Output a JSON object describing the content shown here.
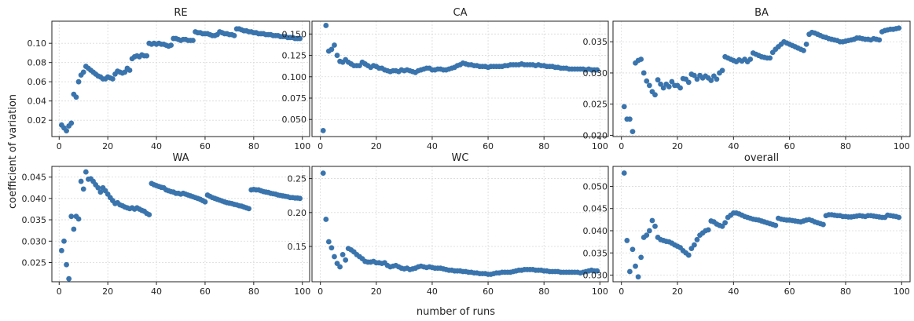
{
  "figure": {
    "ylabel": "coefficient of variation",
    "xlabel": "number of runs"
  },
  "colors": {
    "marker": "#3a74ad",
    "grid": "#d9d9d9",
    "axis": "#222222"
  },
  "chart_data": [
    {
      "type": "scatter",
      "title": "RE",
      "xlim": [
        -3,
        103
      ],
      "ylim": [
        0.003,
        0.123
      ],
      "xticks": [
        0,
        20,
        40,
        60,
        80,
        100
      ],
      "yticks": [
        0.02,
        0.04,
        0.06,
        0.08,
        0.1
      ],
      "ytick_labels": [
        "0.02",
        "0.04",
        "0.06",
        "0.08",
        "0.10"
      ],
      "grid": true,
      "x": [
        1,
        2,
        3,
        4,
        5,
        6,
        7,
        8,
        9,
        10,
        11,
        12,
        13,
        14,
        15,
        16,
        17,
        18,
        19,
        20,
        21,
        22,
        23,
        24,
        25,
        26,
        27,
        28,
        29,
        30,
        31,
        32,
        33,
        34,
        35,
        36,
        37,
        38,
        39,
        40,
        41,
        42,
        43,
        44,
        45,
        46,
        47,
        48,
        49,
        50,
        51,
        52,
        53,
        54,
        55,
        56,
        57,
        58,
        59,
        60,
        61,
        62,
        63,
        64,
        65,
        66,
        67,
        68,
        69,
        70,
        71,
        72,
        73,
        74,
        75,
        76,
        77,
        78,
        79,
        80,
        81,
        82,
        83,
        84,
        85,
        86,
        87,
        88,
        89,
        90,
        91,
        92,
        93,
        94,
        95,
        96,
        97,
        98,
        99
      ],
      "y": [
        0.015,
        0.012,
        0.009,
        0.014,
        0.017,
        0.047,
        0.044,
        0.06,
        0.067,
        0.07,
        0.076,
        0.074,
        0.072,
        0.07,
        0.068,
        0.066,
        0.065,
        0.063,
        0.063,
        0.065,
        0.064,
        0.063,
        0.068,
        0.071,
        0.07,
        0.069,
        0.07,
        0.074,
        0.072,
        0.084,
        0.086,
        0.087,
        0.086,
        0.088,
        0.087,
        0.087,
        0.1,
        0.099,
        0.1,
        0.099,
        0.1,
        0.099,
        0.099,
        0.098,
        0.097,
        0.098,
        0.105,
        0.105,
        0.104,
        0.103,
        0.104,
        0.104,
        0.103,
        0.103,
        0.103,
        0.112,
        0.111,
        0.111,
        0.11,
        0.11,
        0.11,
        0.109,
        0.108,
        0.108,
        0.109,
        0.112,
        0.111,
        0.11,
        0.11,
        0.109,
        0.109,
        0.108,
        0.115,
        0.115,
        0.114,
        0.113,
        0.113,
        0.112,
        0.112,
        0.111,
        0.111,
        0.11,
        0.11,
        0.11,
        0.109,
        0.109,
        0.109,
        0.108,
        0.108,
        0.108,
        0.107,
        0.107,
        0.107,
        0.106,
        0.106,
        0.106,
        0.105,
        0.105,
        0.105
      ]
    },
    {
      "type": "scatter",
      "title": "CA",
      "xlim": [
        -3,
        103
      ],
      "ylim": [
        0.03,
        0.165
      ],
      "xticks": [
        0,
        20,
        40,
        60,
        80,
        100
      ],
      "yticks": [
        0.05,
        0.075,
        0.1,
        0.125,
        0.15
      ],
      "ytick_labels": [
        "0.050",
        "0.075",
        "0.100",
        "0.125",
        "0.150"
      ],
      "grid": true,
      "x": [
        1,
        2,
        3,
        4,
        5,
        6,
        7,
        8,
        9,
        10,
        11,
        12,
        13,
        14,
        15,
        16,
        17,
        18,
        19,
        20,
        21,
        22,
        23,
        24,
        25,
        26,
        27,
        28,
        29,
        30,
        31,
        32,
        33,
        34,
        35,
        36,
        37,
        38,
        39,
        40,
        41,
        42,
        43,
        44,
        45,
        46,
        47,
        48,
        49,
        50,
        51,
        52,
        53,
        54,
        55,
        56,
        57,
        58,
        59,
        60,
        61,
        62,
        63,
        64,
        65,
        66,
        67,
        68,
        69,
        70,
        71,
        72,
        73,
        74,
        75,
        76,
        77,
        78,
        79,
        80,
        81,
        82,
        83,
        84,
        85,
        86,
        87,
        88,
        89,
        90,
        91,
        92,
        93,
        94,
        95,
        96,
        97,
        98,
        99
      ],
      "y": [
        0.037,
        0.16,
        0.13,
        0.132,
        0.137,
        0.125,
        0.118,
        0.117,
        0.12,
        0.117,
        0.115,
        0.113,
        0.113,
        0.113,
        0.117,
        0.115,
        0.113,
        0.111,
        0.113,
        0.112,
        0.11,
        0.11,
        0.108,
        0.107,
        0.106,
        0.107,
        0.107,
        0.106,
        0.108,
        0.107,
        0.108,
        0.107,
        0.106,
        0.105,
        0.107,
        0.108,
        0.109,
        0.11,
        0.11,
        0.108,
        0.108,
        0.109,
        0.109,
        0.108,
        0.108,
        0.109,
        0.11,
        0.111,
        0.113,
        0.114,
        0.116,
        0.115,
        0.114,
        0.114,
        0.113,
        0.113,
        0.112,
        0.112,
        0.112,
        0.111,
        0.112,
        0.112,
        0.112,
        0.112,
        0.112,
        0.113,
        0.113,
        0.114,
        0.114,
        0.114,
        0.114,
        0.115,
        0.114,
        0.114,
        0.114,
        0.114,
        0.113,
        0.114,
        0.113,
        0.113,
        0.112,
        0.112,
        0.112,
        0.111,
        0.111,
        0.11,
        0.11,
        0.11,
        0.109,
        0.109,
        0.109,
        0.109,
        0.109,
        0.109,
        0.108,
        0.109,
        0.108,
        0.108,
        0.108
      ]
    },
    {
      "type": "scatter",
      "title": "BA",
      "xlim": [
        -3,
        103
      ],
      "ylim": [
        0.0198,
        0.0383
      ],
      "xticks": [
        0,
        20,
        40,
        60,
        80,
        100
      ],
      "yticks": [
        0.02,
        0.025,
        0.03,
        0.035
      ],
      "ytick_labels": [
        "0.020",
        "0.025",
        "0.030",
        "0.035"
      ],
      "grid": true,
      "x": [
        1,
        2,
        3,
        4,
        5,
        6,
        7,
        8,
        9,
        10,
        11,
        12,
        13,
        14,
        15,
        16,
        17,
        18,
        19,
        20,
        21,
        22,
        23,
        24,
        25,
        26,
        27,
        28,
        29,
        30,
        31,
        32,
        33,
        34,
        35,
        36,
        37,
        38,
        39,
        40,
        41,
        42,
        43,
        44,
        45,
        46,
        47,
        48,
        49,
        50,
        51,
        52,
        53,
        54,
        55,
        56,
        57,
        58,
        59,
        60,
        61,
        62,
        63,
        64,
        65,
        66,
        67,
        68,
        69,
        70,
        71,
        72,
        73,
        74,
        75,
        76,
        77,
        78,
        79,
        80,
        81,
        82,
        83,
        84,
        85,
        86,
        87,
        88,
        89,
        90,
        91,
        92,
        93,
        94,
        95,
        96,
        97,
        98,
        99
      ],
      "y": [
        0.0246,
        0.0226,
        0.0226,
        0.0206,
        0.0316,
        0.032,
        0.0322,
        0.03,
        0.0287,
        0.028,
        0.027,
        0.0265,
        0.0289,
        0.0282,
        0.0276,
        0.0282,
        0.0278,
        0.0286,
        0.028,
        0.028,
        0.0276,
        0.0291,
        0.029,
        0.0285,
        0.0298,
        0.0296,
        0.029,
        0.0296,
        0.0292,
        0.0295,
        0.0292,
        0.0288,
        0.0295,
        0.029,
        0.03,
        0.0304,
        0.0326,
        0.0324,
        0.0322,
        0.032,
        0.0318,
        0.0321,
        0.0319,
        0.0322,
        0.0318,
        0.0322,
        0.0332,
        0.033,
        0.0328,
        0.0326,
        0.0325,
        0.0324,
        0.0324,
        0.0333,
        0.0338,
        0.0342,
        0.0346,
        0.035,
        0.0348,
        0.0346,
        0.0344,
        0.0342,
        0.034,
        0.0338,
        0.0336,
        0.0346,
        0.0362,
        0.0365,
        0.0364,
        0.0362,
        0.036,
        0.0358,
        0.0357,
        0.0355,
        0.0354,
        0.0353,
        0.0352,
        0.035,
        0.035,
        0.0351,
        0.0352,
        0.0353,
        0.0354,
        0.0356,
        0.0356,
        0.0355,
        0.0354,
        0.0354,
        0.0353,
        0.0355,
        0.0354,
        0.0353,
        0.0366,
        0.0368,
        0.0369,
        0.037,
        0.037,
        0.0371,
        0.0372
      ]
    },
    {
      "type": "scatter",
      "title": "WA",
      "xlim": [
        -3,
        103
      ],
      "ylim": [
        0.0205,
        0.0475
      ],
      "xticks": [
        0,
        20,
        40,
        60,
        80,
        100
      ],
      "yticks": [
        0.025,
        0.03,
        0.035,
        0.04,
        0.045
      ],
      "ytick_labels": [
        "0.025",
        "0.030",
        "0.035",
        "0.040",
        "0.045"
      ],
      "grid": true,
      "x": [
        1,
        2,
        3,
        4,
        5,
        6,
        7,
        8,
        9,
        10,
        11,
        12,
        13,
        14,
        15,
        16,
        17,
        18,
        19,
        20,
        21,
        22,
        23,
        24,
        25,
        26,
        27,
        28,
        29,
        30,
        31,
        32,
        33,
        34,
        35,
        36,
        37,
        38,
        39,
        40,
        41,
        42,
        43,
        44,
        45,
        46,
        47,
        48,
        49,
        50,
        51,
        52,
        53,
        54,
        55,
        56,
        57,
        58,
        59,
        60,
        61,
        62,
        63,
        64,
        65,
        66,
        67,
        68,
        69,
        70,
        71,
        72,
        73,
        74,
        75,
        76,
        77,
        78,
        79,
        80,
        81,
        82,
        83,
        84,
        85,
        86,
        87,
        88,
        89,
        90,
        91,
        92,
        93,
        94,
        95,
        96,
        97,
        98,
        99
      ],
      "y": [
        0.0278,
        0.03,
        0.0245,
        0.0212,
        0.0358,
        0.0328,
        0.0358,
        0.0352,
        0.044,
        0.0422,
        0.0462,
        0.0445,
        0.0446,
        0.044,
        0.0432,
        0.0425,
        0.0415,
        0.0425,
        0.0418,
        0.041,
        0.0402,
        0.0395,
        0.0388,
        0.039,
        0.0385,
        0.0383,
        0.038,
        0.0378,
        0.0376,
        0.0378,
        0.0375,
        0.0378,
        0.0375,
        0.0372,
        0.037,
        0.0365,
        0.0362,
        0.0435,
        0.0432,
        0.043,
        0.0428,
        0.0426,
        0.0425,
        0.042,
        0.0418,
        0.0416,
        0.0415,
        0.0412,
        0.0412,
        0.041,
        0.0412,
        0.041,
        0.0408,
        0.0406,
        0.0404,
        0.0402,
        0.04,
        0.0398,
        0.0395,
        0.0392,
        0.0408,
        0.0405,
        0.0402,
        0.04,
        0.0398,
        0.0396,
        0.0394,
        0.0392,
        0.039,
        0.0389,
        0.0388,
        0.0386,
        0.0385,
        0.0383,
        0.0382,
        0.038,
        0.0378,
        0.0376,
        0.042,
        0.0421,
        0.042,
        0.042,
        0.0418,
        0.0416,
        0.0415,
        0.0414,
        0.0412,
        0.0411,
        0.041,
        0.0408,
        0.0407,
        0.0406,
        0.0405,
        0.0404,
        0.0402,
        0.0402,
        0.0401,
        0.0401,
        0.04
      ]
    },
    {
      "type": "scatter",
      "title": "WC",
      "xlim": [
        -3,
        103
      ],
      "ylim": [
        0.098,
        0.268
      ],
      "xticks": [
        0,
        20,
        40,
        60,
        80,
        100
      ],
      "yticks": [
        0.15,
        0.2,
        0.25
      ],
      "ytick_labels": [
        "0.15",
        "0.20",
        "0.25"
      ],
      "grid": true,
      "x": [
        1,
        2,
        3,
        4,
        5,
        6,
        7,
        8,
        9,
        10,
        11,
        12,
        13,
        14,
        15,
        16,
        17,
        18,
        19,
        20,
        21,
        22,
        23,
        24,
        25,
        26,
        27,
        28,
        29,
        30,
        31,
        32,
        33,
        34,
        35,
        36,
        37,
        38,
        39,
        40,
        41,
        42,
        43,
        44,
        45,
        46,
        47,
        48,
        49,
        50,
        51,
        52,
        53,
        54,
        55,
        56,
        57,
        58,
        59,
        60,
        61,
        62,
        63,
        64,
        65,
        66,
        67,
        68,
        69,
        70,
        71,
        72,
        73,
        74,
        75,
        76,
        77,
        78,
        79,
        80,
        81,
        82,
        83,
        84,
        85,
        86,
        87,
        88,
        89,
        90,
        91,
        92,
        93,
        94,
        95,
        96,
        97,
        98,
        99
      ],
      "y": [
        0.258,
        0.19,
        0.157,
        0.148,
        0.135,
        0.125,
        0.12,
        0.138,
        0.13,
        0.147,
        0.145,
        0.142,
        0.138,
        0.135,
        0.132,
        0.128,
        0.127,
        0.127,
        0.128,
        0.126,
        0.126,
        0.125,
        0.126,
        0.122,
        0.12,
        0.121,
        0.122,
        0.12,
        0.118,
        0.117,
        0.118,
        0.116,
        0.117,
        0.118,
        0.12,
        0.121,
        0.12,
        0.119,
        0.12,
        0.119,
        0.118,
        0.118,
        0.118,
        0.117,
        0.116,
        0.115,
        0.115,
        0.114,
        0.114,
        0.114,
        0.113,
        0.113,
        0.112,
        0.112,
        0.111,
        0.111,
        0.11,
        0.11,
        0.11,
        0.109,
        0.109,
        0.11,
        0.111,
        0.111,
        0.112,
        0.112,
        0.112,
        0.112,
        0.113,
        0.114,
        0.115,
        0.115,
        0.116,
        0.116,
        0.116,
        0.116,
        0.115,
        0.115,
        0.115,
        0.114,
        0.114,
        0.113,
        0.113,
        0.113,
        0.113,
        0.112,
        0.112,
        0.112,
        0.112,
        0.112,
        0.112,
        0.112,
        0.111,
        0.112,
        0.113,
        0.114,
        0.115,
        0.114,
        0.114
      ]
    },
    {
      "type": "scatter",
      "title": "overall",
      "xlim": [
        -3,
        103
      ],
      "ylim": [
        0.0285,
        0.0545
      ],
      "xticks": [
        0,
        20,
        40,
        60,
        80,
        100
      ],
      "yticks": [
        0.03,
        0.035,
        0.04,
        0.045,
        0.05
      ],
      "ytick_labels": [
        "0.030",
        "0.035",
        "0.040",
        "0.045",
        "0.050"
      ],
      "grid": true,
      "x": [
        1,
        2,
        3,
        4,
        5,
        6,
        7,
        8,
        9,
        10,
        11,
        12,
        13,
        14,
        15,
        16,
        17,
        18,
        19,
        20,
        21,
        22,
        23,
        24,
        25,
        26,
        27,
        28,
        29,
        30,
        31,
        32,
        33,
        34,
        35,
        36,
        37,
        38,
        39,
        40,
        41,
        42,
        43,
        44,
        45,
        46,
        47,
        48,
        49,
        50,
        51,
        52,
        53,
        54,
        55,
        56,
        57,
        58,
        59,
        60,
        61,
        62,
        63,
        64,
        65,
        66,
        67,
        68,
        69,
        70,
        71,
        72,
        73,
        74,
        75,
        76,
        77,
        78,
        79,
        80,
        81,
        82,
        83,
        84,
        85,
        86,
        87,
        88,
        89,
        90,
        91,
        92,
        93,
        94,
        95,
        96,
        97,
        98,
        99
      ],
      "y": [
        0.053,
        0.0378,
        0.0308,
        0.0358,
        0.032,
        0.0296,
        0.034,
        0.0385,
        0.039,
        0.04,
        0.0423,
        0.041,
        0.0385,
        0.038,
        0.0378,
        0.0376,
        0.0375,
        0.0372,
        0.0368,
        0.0365,
        0.0362,
        0.0355,
        0.035,
        0.0345,
        0.036,
        0.0368,
        0.038,
        0.039,
        0.0395,
        0.04,
        0.0402,
        0.0422,
        0.042,
        0.0415,
        0.0412,
        0.041,
        0.0418,
        0.043,
        0.0435,
        0.044,
        0.044,
        0.0438,
        0.0435,
        0.0432,
        0.043,
        0.0428,
        0.0426,
        0.0425,
        0.0424,
        0.0422,
        0.042,
        0.0418,
        0.0416,
        0.0414,
        0.0412,
        0.0428,
        0.0426,
        0.0425,
        0.0424,
        0.0424,
        0.0423,
        0.0422,
        0.0421,
        0.042,
        0.0422,
        0.0424,
        0.0425,
        0.0423,
        0.042,
        0.0418,
        0.0416,
        0.0414,
        0.0434,
        0.0436,
        0.0436,
        0.0435,
        0.0434,
        0.0434,
        0.0432,
        0.0432,
        0.0431,
        0.0431,
        0.0432,
        0.0433,
        0.0434,
        0.0433,
        0.0432,
        0.0434,
        0.0434,
        0.0433,
        0.0432,
        0.0431,
        0.043,
        0.043,
        0.0435,
        0.0434,
        0.0433,
        0.0432,
        0.043
      ]
    }
  ]
}
